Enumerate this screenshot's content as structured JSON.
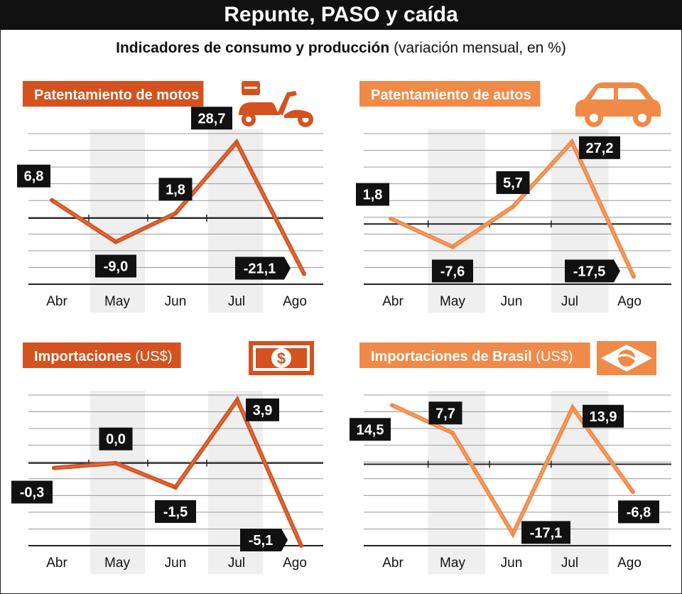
{
  "page": {
    "title": "Repunte, PASO y caída",
    "subtitle_bold": "Indicadores de consumo y producción",
    "subtitle_rest": "(variación mensual, en %)"
  },
  "colors": {
    "dark": "#d3521f",
    "light": "#f08a49",
    "band": "#efefef",
    "label_bg": "#111111"
  },
  "chart_data": [
    {
      "type": "line",
      "title": "Patentamiento de motos",
      "title_suffix": "",
      "icon": "motorcycle-icon",
      "color": "dark",
      "categories": [
        "Abr",
        "May",
        "Jun",
        "Jul",
        "Ago"
      ],
      "values": [
        6.8,
        -9.0,
        1.8,
        28.7,
        -21.1
      ],
      "labels": [
        "6,8",
        "-9,0",
        "1,8",
        "28,7",
        "-21,1"
      ],
      "ylim": [
        -25,
        32
      ]
    },
    {
      "type": "line",
      "title": "Patentamiento de autos",
      "title_suffix": "",
      "icon": "car-icon",
      "color": "light",
      "categories": [
        "Abr",
        "May",
        "Jun",
        "Jul",
        "Ago"
      ],
      "values": [
        1.8,
        -7.6,
        5.7,
        27.2,
        -17.5
      ],
      "labels": [
        "1,8",
        "-7,6",
        "5,7",
        "27,2",
        "-17,5"
      ],
      "ylim": [
        -20,
        30
      ]
    },
    {
      "type": "line",
      "title": "Importaciones",
      "title_suffix": "(US$)",
      "icon": "dollar-bill-icon",
      "color": "dark",
      "categories": [
        "Abr",
        "May",
        "Jun",
        "Jul",
        "Ago"
      ],
      "values": [
        -0.3,
        0.0,
        -1.5,
        3.9,
        -5.1
      ],
      "labels": [
        "-0,3",
        "0,0",
        "-1,5",
        "3,9",
        "-5,1"
      ],
      "ylim": [
        -5.1,
        4.2
      ]
    },
    {
      "type": "line",
      "title": "Importaciones de Brasil",
      "title_suffix": "(US$)",
      "icon": "brazil-flag-icon",
      "color": "light",
      "categories": [
        "Abr",
        "May",
        "Jun",
        "Jul",
        "Ago"
      ],
      "values": [
        14.5,
        7.7,
        -17.1,
        13.9,
        -6.8
      ],
      "labels": [
        "14,5",
        "7,7",
        "-17,1",
        "13,9",
        "-6,8"
      ],
      "ylim": [
        -20,
        17
      ]
    }
  ]
}
